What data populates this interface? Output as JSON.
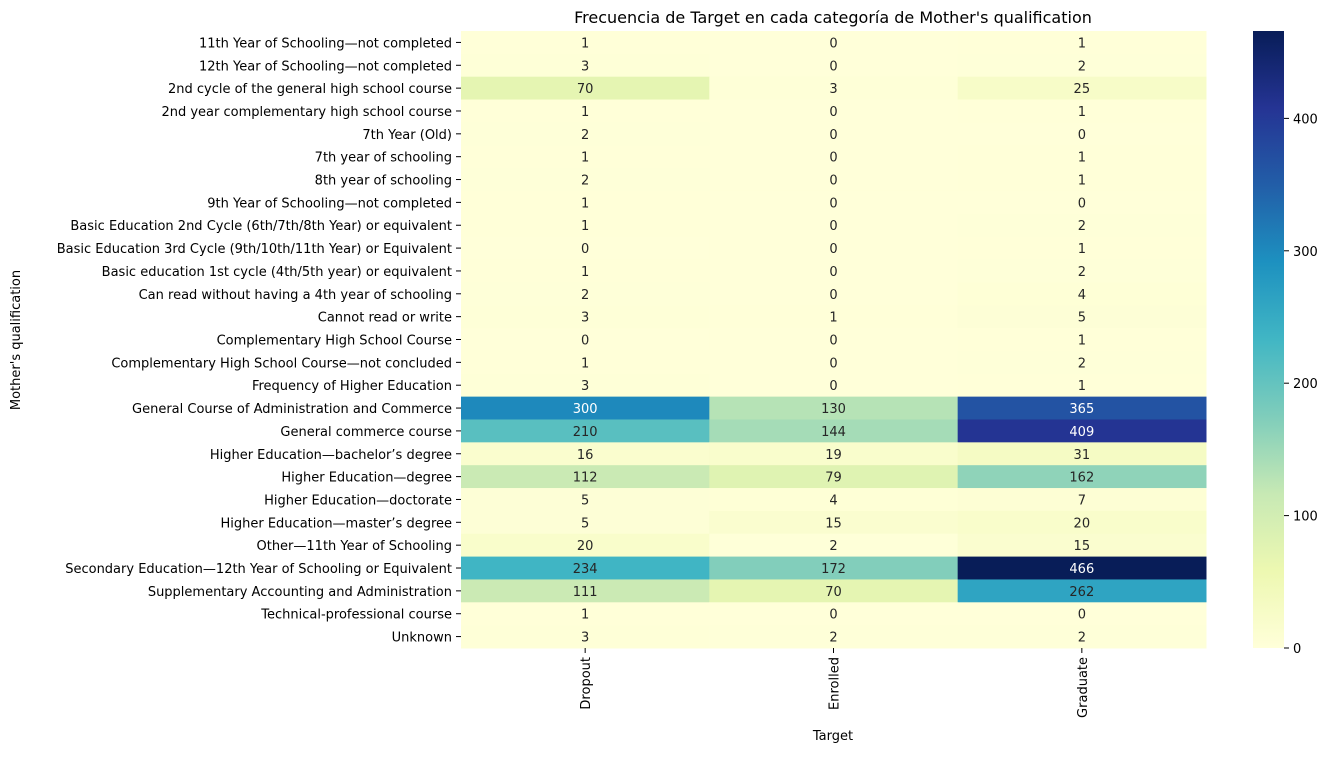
{
  "chart_data": {
    "type": "heatmap",
    "title": "Frecuencia de Target en cada categoría de Mother's qualification",
    "xlabel": "Target",
    "ylabel": "Mother's qualification",
    "x_categories": [
      "Dropout",
      "Enrolled",
      "Graduate"
    ],
    "y_categories": [
      "11th Year of Schooling—not completed",
      "12th Year of Schooling—not completed",
      "2nd cycle of the general high school course",
      "2nd year complementary high school course",
      "7th Year (Old)",
      "7th year of schooling",
      "8th year of schooling",
      "9th Year of Schooling—not completed",
      "Basic Education 2nd Cycle (6th/7th/8th Year) or equivalent",
      "Basic Education 3rd Cycle (9th/10th/11th Year) or Equivalent",
      "Basic education 1st cycle (4th/5th year) or equivalent",
      "Can read without having a 4th year of schooling",
      "Cannot read or write",
      "Complementary High School Course",
      "Complementary High School Course—not concluded",
      "Frequency of Higher Education",
      "General Course of Administration and Commerce",
      "General commerce course",
      "Higher Education—bachelor’s degree",
      "Higher Education—degree",
      "Higher Education—doctorate",
      "Higher Education—master’s degree",
      "Other—11th Year of Schooling",
      "Secondary Education—12th Year of Schooling or Equivalent",
      "Supplementary Accounting and Administration",
      "Technical-professional course",
      "Unknown"
    ],
    "values": [
      [
        1,
        0,
        1
      ],
      [
        3,
        0,
        2
      ],
      [
        70,
        3,
        25
      ],
      [
        1,
        0,
        1
      ],
      [
        2,
        0,
        0
      ],
      [
        1,
        0,
        1
      ],
      [
        2,
        0,
        1
      ],
      [
        1,
        0,
        0
      ],
      [
        1,
        0,
        2
      ],
      [
        0,
        0,
        1
      ],
      [
        1,
        0,
        2
      ],
      [
        2,
        0,
        4
      ],
      [
        3,
        1,
        5
      ],
      [
        0,
        0,
        1
      ],
      [
        1,
        0,
        2
      ],
      [
        3,
        0,
        1
      ],
      [
        300,
        130,
        365
      ],
      [
        210,
        144,
        409
      ],
      [
        16,
        19,
        31
      ],
      [
        112,
        79,
        162
      ],
      [
        5,
        4,
        7
      ],
      [
        5,
        15,
        20
      ],
      [
        20,
        2,
        15
      ],
      [
        234,
        172,
        466
      ],
      [
        111,
        70,
        262
      ],
      [
        1,
        0,
        0
      ],
      [
        3,
        2,
        2
      ]
    ],
    "colormap": "YlGnBu",
    "colorbar": {
      "min": 0,
      "max": 466,
      "ticks": [
        0,
        100,
        200,
        300,
        400
      ]
    },
    "annotations": true,
    "grid": false,
    "colorbar_position": "right"
  }
}
